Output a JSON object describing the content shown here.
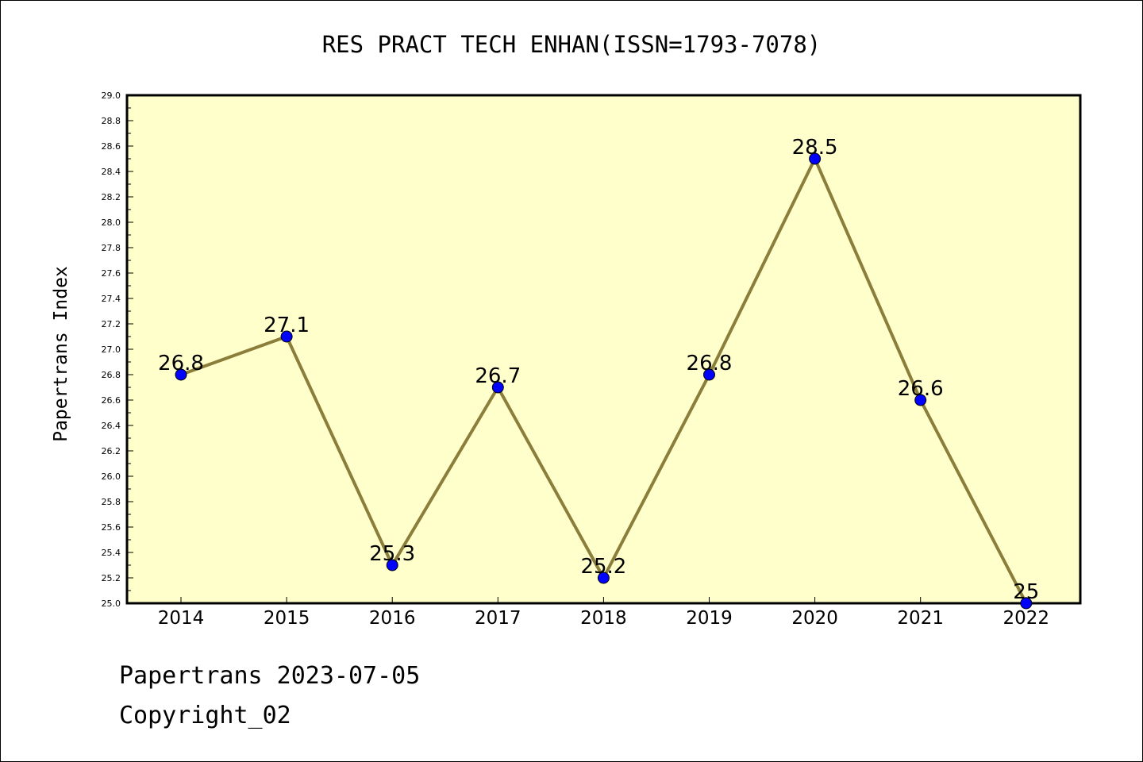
{
  "footer": {
    "line1": "Papertrans 2023-07-05",
    "line2": "Copyright_02"
  },
  "colors": {
    "plot_background": "#ffffcc",
    "line": "#8b7d3a",
    "marker": "#0000ff",
    "frame": "#000000"
  },
  "chart_data": {
    "type": "line",
    "title": "RES PRACT TECH ENHAN(ISSN=1793-7078)",
    "xlabel": "",
    "ylabel": "Papertrans Index",
    "categories": [
      "2014",
      "2015",
      "2016",
      "2017",
      "2018",
      "2019",
      "2020",
      "2021",
      "2022"
    ],
    "series": [
      {
        "values": [
          26.8,
          27.1,
          25.3,
          26.7,
          25.2,
          26.8,
          28.5,
          26.6,
          25.0
        ],
        "labels": [
          "26.8",
          "27.1",
          "25.3",
          "26.7",
          "25.2",
          "26.8",
          "28.5",
          "26.6",
          "25"
        ]
      }
    ],
    "ylim": [
      25.0,
      29.0
    ],
    "yticks": [
      "25.0",
      "25.2",
      "25.4",
      "25.6",
      "25.8",
      "26.0",
      "26.2",
      "26.4",
      "26.6",
      "26.8",
      "27.0",
      "27.2",
      "27.4",
      "27.6",
      "27.8",
      "28.0",
      "28.2",
      "28.4",
      "28.6",
      "28.8",
      "29.0"
    ],
    "grid": false,
    "legend": "none"
  }
}
